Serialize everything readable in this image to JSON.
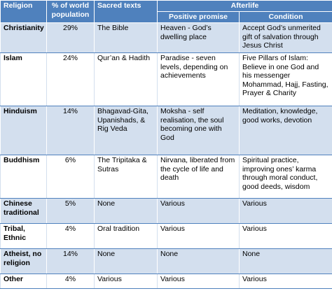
{
  "header": {
    "religion": "Religion",
    "population": "% of world population",
    "sacred_texts": "Sacred texts",
    "afterlife": "Afterlife",
    "positive_promise": "Positive promise",
    "condition": "Condition"
  },
  "rows": [
    {
      "religion": "Christianity",
      "population": "29%",
      "sacred_texts": "The Bible",
      "positive_promise": "Heaven - God’s dwelling place",
      "condition": "Accept God’s unmerited gift of salvation through Jesus Christ"
    },
    {
      "religion": "Islam",
      "population": "24%",
      "sacred_texts": "Qur’an & Hadith",
      "positive_promise": "Paradise - seven levels, depending on achievements",
      "condition": "Five Pillars of Islam: Believe in one God and his messenger Mohammad, Hajj, Fasting, Prayer & Charity"
    },
    {
      "religion": "Hinduism",
      "population": "14%",
      "sacred_texts": "Bhagavad-Gita, Upanishads, & Rig Veda",
      "positive_promise": "Moksha - self realisation, the soul becoming one with God",
      "condition": "Meditation, knowledge, good works, devotion"
    },
    {
      "religion": "Buddhism",
      "population": "6%",
      "sacred_texts": "The Tripitaka & Sutras",
      "positive_promise": "Nirvana, liberated from the cycle of life and death",
      "condition": "Spiritual practice, improving ones’ karma through moral conduct, good deeds, wisdom"
    },
    {
      "religion": "Chinese traditional",
      "population": "5%",
      "sacred_texts": "None",
      "positive_promise": "Various",
      "condition": "Various"
    },
    {
      "religion": "Tribal, Ethnic",
      "population": "4%",
      "sacred_texts": "Oral tradition",
      "positive_promise": "Various",
      "condition": "Various"
    },
    {
      "religion": "Atheist, no religion",
      "population": "14%",
      "sacred_texts": "None",
      "positive_promise": "None",
      "condition": "None"
    },
    {
      "religion": "Other",
      "population": "4%",
      "sacred_texts": "Various",
      "positive_promise": "Various",
      "condition": "Various"
    }
  ],
  "colors": {
    "header_bg": "#4f81bd",
    "header_text": "#ffffff",
    "band_bg": "#d3dfee"
  }
}
